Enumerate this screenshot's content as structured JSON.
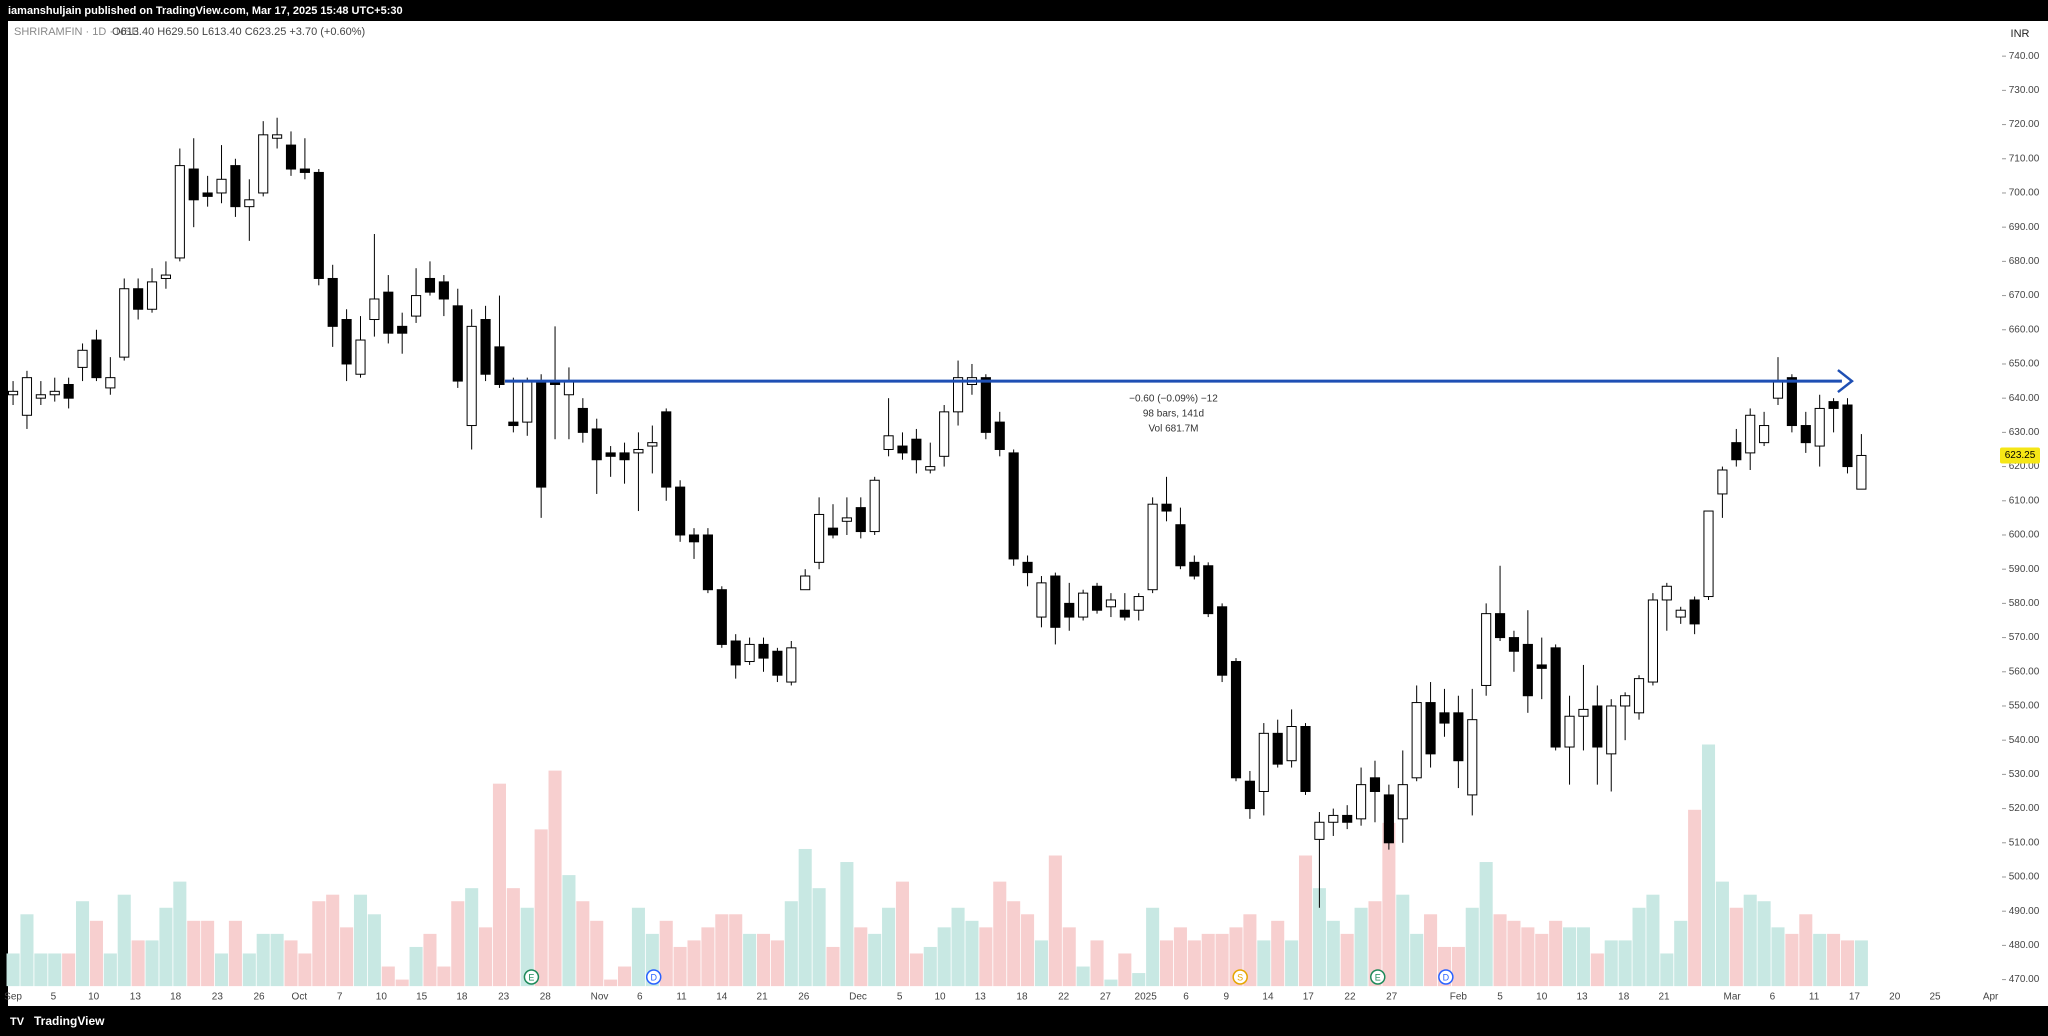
{
  "header": {
    "title": "iamanshuljain published on TradingView.com, Mar 17, 2025 15:48 UTC+5:30"
  },
  "chart_data": {
    "type": "candlestick",
    "symbol": "SHRIRAMFIN · 1D · NSE",
    "ohlc_legend": "O613.40 H629.50 L613.40 C623.25 +3.70 (+0.60%)",
    "currency": "INR",
    "up_color": "#ffffff",
    "down_color": "#000000",
    "outline_color": "#000000",
    "up_volume_color": "#c8e8e3",
    "down_volume_color": "#f7cfcf",
    "ylim": [
      470,
      740
    ],
    "yticks": [
      {
        "value": 740,
        "label": "740.00"
      },
      {
        "value": 730,
        "label": "730.00"
      },
      {
        "value": 720,
        "label": "720.00"
      },
      {
        "value": 710,
        "label": "710.00"
      },
      {
        "value": 700,
        "label": "700.00"
      },
      {
        "value": 690,
        "label": "690.00"
      },
      {
        "value": 680,
        "label": "680.00"
      },
      {
        "value": 670,
        "label": "670.00"
      },
      {
        "value": 660,
        "label": "660.00"
      },
      {
        "value": 650,
        "label": "650.00"
      },
      {
        "value": 640,
        "label": "640.00"
      },
      {
        "value": 630,
        "label": "630.00"
      },
      {
        "value": 620,
        "label": "620.00"
      },
      {
        "value": 610,
        "label": "610.00"
      },
      {
        "value": 600,
        "label": "600.00"
      },
      {
        "value": 590,
        "label": "590.00"
      },
      {
        "value": 580,
        "label": "580.00"
      },
      {
        "value": 570,
        "label": "570.00"
      },
      {
        "value": 560,
        "label": "560.00"
      },
      {
        "value": 550,
        "label": "550.00"
      },
      {
        "value": 540,
        "label": "540.00"
      },
      {
        "value": 530,
        "label": "530.00"
      },
      {
        "value": 520,
        "label": "520.00"
      },
      {
        "value": 510,
        "label": "510.00"
      },
      {
        "value": 500,
        "label": "500.00"
      },
      {
        "value": 490,
        "label": "490.00"
      },
      {
        "value": 480,
        "label": "480.00"
      },
      {
        "value": 470,
        "label": "470.00"
      }
    ],
    "xticks": [
      {
        "value": 0,
        "label": "Sep"
      },
      {
        "value": 2.9,
        "label": "5"
      },
      {
        "value": 5.8,
        "label": "10"
      },
      {
        "value": 8.8,
        "label": "13"
      },
      {
        "value": 11.7,
        "label": "18"
      },
      {
        "value": 14.7,
        "label": "23"
      },
      {
        "value": 17.7,
        "label": "26"
      },
      {
        "value": 20.6,
        "label": "Oct"
      },
      {
        "value": 23.5,
        "label": "7"
      },
      {
        "value": 26.5,
        "label": "10"
      },
      {
        "value": 29.4,
        "label": "15"
      },
      {
        "value": 32.3,
        "label": "18"
      },
      {
        "value": 35.3,
        "label": "23"
      },
      {
        "value": 38.3,
        "label": "28"
      },
      {
        "value": 42.2,
        "label": "Nov"
      },
      {
        "value": 45.1,
        "label": "6"
      },
      {
        "value": 48.1,
        "label": "11"
      },
      {
        "value": 51.0,
        "label": "14"
      },
      {
        "value": 53.9,
        "label": "21"
      },
      {
        "value": 56.9,
        "label": "26"
      },
      {
        "value": 60.8,
        "label": "Dec"
      },
      {
        "value": 63.8,
        "label": "5"
      },
      {
        "value": 66.7,
        "label": "10"
      },
      {
        "value": 69.6,
        "label": "13"
      },
      {
        "value": 72.6,
        "label": "18"
      },
      {
        "value": 75.6,
        "label": "22"
      },
      {
        "value": 78.6,
        "label": "27"
      },
      {
        "value": 81.5,
        "label": "2025"
      },
      {
        "value": 84.4,
        "label": "6"
      },
      {
        "value": 87.3,
        "label": "9"
      },
      {
        "value": 90.3,
        "label": "14"
      },
      {
        "value": 93.2,
        "label": "17"
      },
      {
        "value": 96.2,
        "label": "22"
      },
      {
        "value": 99.2,
        "label": "27"
      },
      {
        "value": 104.0,
        "label": "Feb"
      },
      {
        "value": 107.0,
        "label": "5"
      },
      {
        "value": 110.0,
        "label": "10"
      },
      {
        "value": 112.9,
        "label": "13"
      },
      {
        "value": 115.9,
        "label": "18"
      },
      {
        "value": 118.8,
        "label": "21"
      },
      {
        "value": 123.7,
        "label": "Mar"
      },
      {
        "value": 126.6,
        "label": "6"
      },
      {
        "value": 129.6,
        "label": "11"
      },
      {
        "value": 132.5,
        "label": "17"
      },
      {
        "value": 135.4,
        "label": "20"
      },
      {
        "value": 138.3,
        "label": "25"
      },
      {
        "value": 142.3,
        "label": "Apr"
      }
    ],
    "ohlc": [
      [
        641,
        645,
        638,
        642
      ],
      [
        635,
        648,
        631,
        646
      ],
      [
        640,
        645,
        638,
        641
      ],
      [
        641,
        646,
        639,
        642
      ],
      [
        644,
        646,
        637,
        640
      ],
      [
        649,
        656,
        645,
        654
      ],
      [
        657,
        660,
        645,
        646
      ],
      [
        643,
        652,
        641,
        646
      ],
      [
        652,
        675,
        651,
        672
      ],
      [
        672,
        675,
        663,
        666
      ],
      [
        666,
        678,
        665,
        674
      ],
      [
        675,
        680,
        672,
        676
      ],
      [
        681,
        713,
        680,
        708
      ],
      [
        707,
        716,
        690,
        698
      ],
      [
        700,
        705,
        696,
        699
      ],
      [
        700,
        714,
        697,
        704
      ],
      [
        708,
        710,
        693,
        696
      ],
      [
        696,
        704,
        686,
        698
      ],
      [
        700,
        721,
        699,
        717
      ],
      [
        716,
        722,
        713,
        717
      ],
      [
        714,
        718,
        705,
        707
      ],
      [
        707,
        716,
        704,
        706
      ],
      [
        706,
        707,
        673,
        675
      ],
      [
        675,
        679,
        655,
        661
      ],
      [
        663,
        666,
        645,
        650
      ],
      [
        647,
        664,
        646,
        657
      ],
      [
        663,
        688,
        658,
        669
      ],
      [
        671,
        676,
        656,
        659
      ],
      [
        661,
        665,
        653,
        659
      ],
      [
        664,
        678,
        662,
        670
      ],
      [
        675,
        680,
        670,
        671
      ],
      [
        674,
        676,
        664,
        669
      ],
      [
        667,
        672,
        643,
        645
      ],
      [
        632,
        666,
        625,
        661
      ],
      [
        663,
        667,
        645,
        647
      ],
      [
        655,
        670,
        643,
        644
      ],
      [
        633,
        646,
        630,
        632
      ],
      [
        633,
        646,
        629,
        645
      ],
      [
        645,
        647,
        605,
        614
      ],
      [
        645,
        661,
        628,
        644
      ],
      [
        641,
        649,
        628,
        645
      ],
      [
        637,
        640,
        627,
        630
      ],
      [
        631,
        634,
        612,
        622
      ],
      [
        624,
        626,
        617,
        623
      ],
      [
        624,
        627,
        615,
        622
      ],
      [
        624,
        630,
        607,
        625
      ],
      [
        626,
        632,
        618,
        627
      ],
      [
        636,
        637,
        610,
        614
      ],
      [
        614,
        616,
        598,
        600
      ],
      [
        600,
        602,
        593,
        598
      ],
      [
        600,
        602,
        583,
        584
      ],
      [
        584,
        585,
        567,
        568
      ],
      [
        569,
        571,
        558,
        562
      ],
      [
        563,
        570,
        562,
        568
      ],
      [
        568,
        570,
        560,
        564
      ],
      [
        566,
        567,
        557,
        559
      ],
      [
        557,
        569,
        556,
        567
      ],
      [
        584,
        590,
        584,
        588
      ],
      [
        592,
        611,
        590,
        606
      ],
      [
        602,
        609,
        599,
        600
      ],
      [
        604,
        611,
        600,
        605
      ],
      [
        608,
        611,
        599,
        601
      ],
      [
        601,
        617,
        600,
        616
      ],
      [
        625,
        640,
        623,
        629
      ],
      [
        626,
        630,
        622,
        624
      ],
      [
        628,
        631,
        618,
        622
      ],
      [
        619,
        627,
        618,
        620
      ],
      [
        623,
        638,
        620,
        636
      ],
      [
        636,
        651,
        632,
        646
      ],
      [
        644,
        650,
        641,
        646
      ],
      [
        646,
        647,
        628,
        630
      ],
      [
        633,
        636,
        623,
        625
      ],
      [
        624,
        625,
        591,
        593
      ],
      [
        592,
        594,
        585,
        589
      ],
      [
        576,
        588,
        573,
        586
      ],
      [
        588,
        589,
        568,
        573
      ],
      [
        580,
        586,
        572,
        576
      ],
      [
        576,
        584,
        575,
        583
      ],
      [
        585,
        586,
        577,
        578
      ],
      [
        579,
        583,
        576,
        581
      ],
      [
        578,
        583,
        575,
        576
      ],
      [
        578,
        583,
        575,
        582
      ],
      [
        584,
        611,
        583,
        609
      ],
      [
        609,
        617,
        604,
        607
      ],
      [
        603,
        608,
        590,
        591
      ],
      [
        592,
        594,
        587,
        588
      ],
      [
        591,
        592,
        576,
        577
      ],
      [
        579,
        580,
        557,
        559
      ],
      [
        563,
        564,
        528,
        529
      ],
      [
        528,
        531,
        517,
        520
      ],
      [
        525,
        545,
        518,
        542
      ],
      [
        542,
        546,
        532,
        533
      ],
      [
        534,
        549,
        532,
        544
      ],
      [
        544,
        545,
        524,
        525
      ],
      [
        511,
        519,
        491,
        516
      ],
      [
        516,
        520,
        512,
        518
      ],
      [
        518,
        521,
        514,
        516
      ],
      [
        517,
        532,
        515,
        527
      ],
      [
        529,
        534,
        516,
        525
      ],
      [
        524,
        527,
        508,
        510
      ],
      [
        517,
        537,
        510,
        527
      ],
      [
        529,
        556,
        528,
        551
      ],
      [
        551,
        557,
        532,
        536
      ],
      [
        548,
        555,
        541,
        545
      ],
      [
        548,
        553,
        526,
        534
      ],
      [
        524,
        555,
        518,
        546
      ],
      [
        556,
        580,
        553,
        577
      ],
      [
        577,
        591,
        569,
        570
      ],
      [
        570,
        572,
        560,
        566
      ],
      [
        568,
        578,
        548,
        553
      ],
      [
        562,
        570,
        552,
        561
      ],
      [
        567,
        568,
        537,
        538
      ],
      [
        538,
        553,
        527,
        547
      ],
      [
        547,
        562,
        537,
        549
      ],
      [
        550,
        556,
        527,
        538
      ],
      [
        536,
        552,
        525,
        550
      ],
      [
        550,
        554,
        540,
        553
      ],
      [
        548,
        559,
        546,
        558
      ],
      [
        557,
        583,
        556,
        581
      ],
      [
        581,
        586,
        572,
        585
      ],
      [
        576,
        579,
        574,
        578
      ],
      [
        581,
        582,
        571,
        574
      ],
      [
        582,
        607,
        581,
        607
      ],
      [
        612,
        620,
        605,
        619
      ],
      [
        627,
        631,
        620,
        622
      ],
      [
        624,
        637,
        619,
        635
      ],
      [
        627,
        636,
        626,
        632
      ],
      [
        640,
        652,
        638,
        645
      ],
      [
        646,
        647,
        630,
        632
      ],
      [
        632,
        636,
        624,
        627
      ],
      [
        626,
        641,
        620,
        637
      ],
      [
        639,
        640,
        630,
        637
      ],
      [
        638,
        640,
        618,
        620
      ],
      [
        613.4,
        629.5,
        613.4,
        623.25
      ]
    ],
    "volume": [
      5,
      11,
      5,
      5,
      5,
      13,
      10,
      5,
      14,
      7,
      7,
      12,
      16,
      10,
      10,
      5,
      10,
      5,
      8,
      8,
      7,
      5,
      13,
      14,
      9,
      14,
      11,
      3,
      1,
      6,
      8,
      3,
      13,
      15,
      9,
      31,
      15,
      12,
      24,
      33,
      17,
      13,
      10,
      1,
      3,
      12,
      8,
      10,
      6,
      7,
      9,
      11,
      11,
      8,
      8,
      7,
      13,
      21,
      15,
      6,
      19,
      9,
      8,
      12,
      16,
      5,
      6,
      9,
      12,
      10,
      9,
      16,
      13,
      11,
      7,
      20,
      9,
      3,
      7,
      1,
      5,
      2,
      12,
      7,
      9,
      7,
      8,
      8,
      9,
      11,
      7,
      10,
      7,
      20,
      15,
      10,
      8,
      12,
      13,
      25,
      14,
      8,
      11,
      6,
      6,
      12,
      19,
      11,
      10,
      9,
      8,
      10,
      9,
      9,
      5,
      7,
      7,
      12,
      14,
      5,
      10,
      27,
      37,
      16,
      12,
      14,
      13,
      9,
      8,
      11,
      8,
      8,
      7,
      7
    ],
    "last_price_label": "623.25",
    "measure": {
      "price": 645,
      "start": 35.4,
      "end": 131.6,
      "color": "#1e4fb4",
      "lines": [
        "−0.60 (−0.09%) −12",
        "98 bars, 141d",
        "Vol 681.7M"
      ]
    },
    "events": [
      {
        "label": "E",
        "index": 37.3,
        "color": "#1e8a5a"
      },
      {
        "label": "D",
        "index": 46.1,
        "color": "#2962ff"
      },
      {
        "label": "S",
        "index": 88.3,
        "color": "#e6a600"
      },
      {
        "label": "E",
        "index": 98.2,
        "color": "#1e8a5a"
      },
      {
        "label": "D",
        "index": 103.1,
        "color": "#2962ff"
      }
    ],
    "grid": false
  },
  "footer": {
    "brand": "TradingView"
  }
}
